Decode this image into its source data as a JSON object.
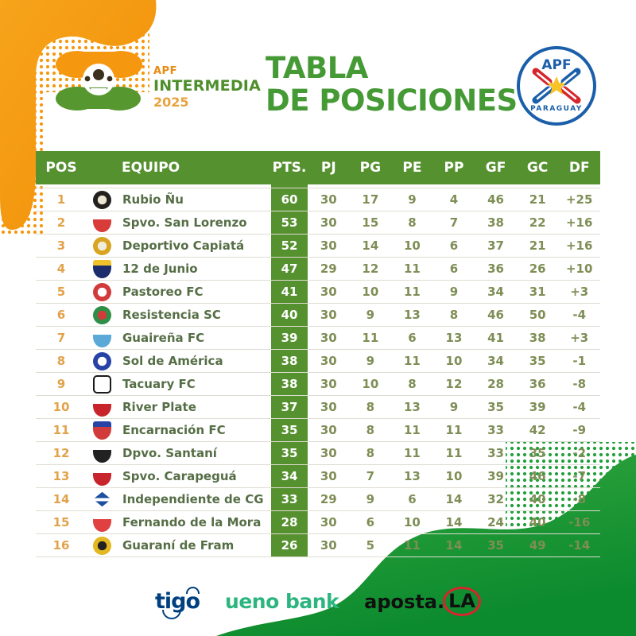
{
  "page": {
    "title_line1": "TABLA",
    "title_line2": "DE POSICIONES"
  },
  "league_logo": {
    "apf": "APF",
    "intermedia": "INTERMEDIA",
    "year": "2025"
  },
  "federation_badge": {
    "apf": "APF",
    "country": "PARAGUAY"
  },
  "colors": {
    "accent_orange": "#F5980F",
    "table_green": "#569130",
    "title_green": "#459A35",
    "blob_green_light": "#36A83E",
    "blob_green_dark": "#0B8A2E",
    "pos_orange": "#E2A24A",
    "stat_olive": "#7E8E55"
  },
  "table": {
    "columns": [
      "POS",
      "EQUIPO",
      "PTS.",
      "PJ",
      "PG",
      "PE",
      "PP",
      "GF",
      "GC",
      "DF"
    ],
    "rows": [
      {
        "pos": "1",
        "team": "Rubio Ñu",
        "pts": "60",
        "stats": [
          "30",
          "17",
          "9",
          "4",
          "46",
          "21",
          "+25"
        ],
        "badge": {
          "shape": "circle",
          "c1": "#23201d",
          "c2": "#ece5d2"
        }
      },
      {
        "pos": "2",
        "team": "Spvo. San Lorenzo",
        "pts": "53",
        "stats": [
          "30",
          "15",
          "8",
          "7",
          "38",
          "22",
          "+16"
        ],
        "badge": {
          "shape": "shield",
          "c1": "#d93a3a",
          "c2": "#ffffff"
        }
      },
      {
        "pos": "3",
        "team": "Deportivo Capiatá",
        "pts": "52",
        "stats": [
          "30",
          "14",
          "10",
          "6",
          "37",
          "21",
          "+16"
        ],
        "badge": {
          "shape": "circle",
          "c1": "#d8a421",
          "c2": "#f2ecdc"
        }
      },
      {
        "pos": "4",
        "team": "12 de Junio",
        "pts": "47",
        "stats": [
          "29",
          "12",
          "11",
          "6",
          "36",
          "26",
          "+10"
        ],
        "badge": {
          "shape": "shield",
          "c1": "#1d2d6b",
          "c2": "#f0c22a"
        }
      },
      {
        "pos": "5",
        "team": "Pastoreo FC",
        "pts": "41",
        "stats": [
          "30",
          "10",
          "11",
          "9",
          "34",
          "31",
          "+3"
        ],
        "badge": {
          "shape": "circle",
          "c1": "#d23b3b",
          "c2": "#ffffff"
        }
      },
      {
        "pos": "6",
        "team": "Resistencia SC",
        "pts": "40",
        "stats": [
          "30",
          "9",
          "13",
          "8",
          "46",
          "50",
          "-4"
        ],
        "badge": {
          "shape": "circle",
          "c1": "#2f8f46",
          "c2": "#d23b3b"
        }
      },
      {
        "pos": "7",
        "team": "Guaireña FC",
        "pts": "39",
        "stats": [
          "30",
          "11",
          "6",
          "13",
          "41",
          "38",
          "+3"
        ],
        "badge": {
          "shape": "shield",
          "c1": "#5aa9d6",
          "c2": "#ffffff"
        }
      },
      {
        "pos": "8",
        "team": "Sol de América",
        "pts": "38",
        "stats": [
          "30",
          "9",
          "11",
          "10",
          "34",
          "35",
          "-1"
        ],
        "badge": {
          "shape": "circle",
          "c1": "#2743a6",
          "c2": "#ffffff"
        }
      },
      {
        "pos": "9",
        "team": "Tacuary FC",
        "pts": "38",
        "stats": [
          "30",
          "10",
          "8",
          "12",
          "28",
          "36",
          "-8"
        ],
        "badge": {
          "shape": "rect",
          "c1": "#ffffff",
          "c2": "#1a1a1a"
        }
      },
      {
        "pos": "10",
        "team": "River Plate",
        "pts": "37",
        "stats": [
          "30",
          "8",
          "13",
          "9",
          "35",
          "39",
          "-4"
        ],
        "badge": {
          "shape": "shield",
          "c1": "#c8242c",
          "c2": "#ffffff"
        }
      },
      {
        "pos": "11",
        "team": "Encarnación FC",
        "pts": "35",
        "stats": [
          "30",
          "8",
          "11",
          "11",
          "33",
          "42",
          "-9"
        ],
        "badge": {
          "shape": "shield",
          "c1": "#d23b3b",
          "c2": "#2743a6"
        }
      },
      {
        "pos": "12",
        "team": "Dpvo. Santaní",
        "pts": "35",
        "stats": [
          "30",
          "8",
          "11",
          "11",
          "33",
          "35",
          "-2"
        ],
        "badge": {
          "shape": "shield",
          "c1": "#222222",
          "c2": "#ffffff"
        }
      },
      {
        "pos": "13",
        "team": "Spvo. Carapeguá",
        "pts": "34",
        "stats": [
          "30",
          "7",
          "13",
          "10",
          "39",
          "46",
          "-7"
        ],
        "badge": {
          "shape": "shield",
          "c1": "#c8242c",
          "c2": "#ffffff"
        }
      },
      {
        "pos": "14",
        "team": "Independiente de CG",
        "pts": "33",
        "stats": [
          "29",
          "9",
          "6",
          "14",
          "32",
          "40",
          "-8"
        ],
        "badge": {
          "shape": "diamond",
          "c1": "#1d4fa0",
          "c2": "#ffffff"
        }
      },
      {
        "pos": "15",
        "team": "Fernando de la Mora",
        "pts": "28",
        "stats": [
          "30",
          "6",
          "10",
          "14",
          "24",
          "40",
          "-16"
        ],
        "badge": {
          "shape": "shield",
          "c1": "#e04040",
          "c2": "#ffffff"
        }
      },
      {
        "pos": "16",
        "team": "Guaraní de Fram",
        "pts": "26",
        "stats": [
          "30",
          "5",
          "11",
          "14",
          "35",
          "49",
          "-14"
        ],
        "badge": {
          "shape": "circle",
          "c1": "#e3b820",
          "c2": "#222222"
        }
      }
    ]
  },
  "chart_data": {
    "type": "table",
    "title": "TABLA DE POSICIONES — APF INTERMEDIA 2025",
    "columns": [
      "POS",
      "EQUIPO",
      "PTS.",
      "PJ",
      "PG",
      "PE",
      "PP",
      "GF",
      "GC",
      "DF"
    ],
    "rows": [
      [
        "1",
        "Rubio Ñu",
        "60",
        "30",
        "17",
        "9",
        "4",
        "46",
        "21",
        "+25"
      ],
      [
        "2",
        "Spvo. San Lorenzo",
        "53",
        "30",
        "15",
        "8",
        "7",
        "38",
        "22",
        "+16"
      ],
      [
        "3",
        "Deportivo Capiatá",
        "52",
        "30",
        "14",
        "10",
        "6",
        "37",
        "21",
        "+16"
      ],
      [
        "4",
        "12 de Junio",
        "47",
        "29",
        "12",
        "11",
        "6",
        "36",
        "26",
        "+10"
      ],
      [
        "5",
        "Pastoreo FC",
        "41",
        "30",
        "10",
        "11",
        "9",
        "34",
        "31",
        "+3"
      ],
      [
        "6",
        "Resistencia SC",
        "40",
        "30",
        "9",
        "13",
        "8",
        "46",
        "50",
        "-4"
      ],
      [
        "7",
        "Guaireña FC",
        "39",
        "30",
        "11",
        "6",
        "13",
        "41",
        "38",
        "+3"
      ],
      [
        "8",
        "Sol de América",
        "38",
        "30",
        "9",
        "11",
        "10",
        "34",
        "35",
        "-1"
      ],
      [
        "9",
        "Tacuary FC",
        "38",
        "30",
        "10",
        "8",
        "12",
        "28",
        "36",
        "-8"
      ],
      [
        "10",
        "River Plate",
        "37",
        "30",
        "8",
        "13",
        "9",
        "35",
        "39",
        "-4"
      ],
      [
        "11",
        "Encarnación FC",
        "35",
        "30",
        "8",
        "11",
        "11",
        "33",
        "42",
        "-9"
      ],
      [
        "12",
        "Dpvo. Santaní",
        "35",
        "30",
        "8",
        "11",
        "11",
        "33",
        "35",
        "-2"
      ],
      [
        "13",
        "Spvo. Carapeguá",
        "34",
        "30",
        "7",
        "13",
        "10",
        "39",
        "46",
        "-7"
      ],
      [
        "14",
        "Independiente de CG",
        "33",
        "29",
        "9",
        "6",
        "14",
        "32",
        "40",
        "-8"
      ],
      [
        "15",
        "Fernando de la Mora",
        "28",
        "30",
        "6",
        "10",
        "14",
        "24",
        "40",
        "-16"
      ],
      [
        "16",
        "Guaraní de Fram",
        "26",
        "30",
        "5",
        "11",
        "14",
        "35",
        "49",
        "-14"
      ]
    ]
  },
  "sponsors": {
    "tigo": "tigo",
    "ueno": "ueno bank",
    "apostala_prefix": "aposta.",
    "apostala_circled": "LA"
  }
}
